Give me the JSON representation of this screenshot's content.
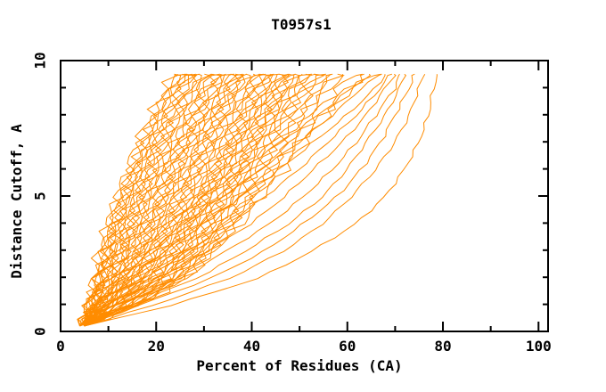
{
  "chart_data": {
    "type": "line",
    "title": "T0957s1",
    "xlabel": "Percent of Residues (CA)",
    "ylabel": "Distance Cutoff, A",
    "xlim": [
      0,
      102
    ],
    "ylim": [
      0,
      10
    ],
    "x_major_ticks": [
      0,
      20,
      40,
      60,
      80,
      100
    ],
    "x_minor_ticks": [
      10,
      30,
      50,
      70,
      90
    ],
    "y_major_ticks": [
      0,
      5,
      10
    ],
    "y_minor_ticks": [
      1,
      2,
      3,
      4,
      6,
      7,
      8,
      9
    ],
    "grid": false,
    "legend_position": "none",
    "line_color": "#ff8c00",
    "axis_color": "#000000",
    "background_color": "#ffffff",
    "cutoffs": [
      0.2,
      1,
      2,
      3,
      4,
      5,
      6,
      7,
      8,
      9,
      9.5
    ],
    "series": [
      {
        "group": "bundle",
        "percents": [
          4,
          6,
          7,
          8,
          10,
          12,
          14,
          16,
          19,
          22,
          24
        ]
      },
      {
        "group": "bundle",
        "percents": [
          5,
          6,
          8,
          9,
          10,
          12,
          15,
          17,
          20,
          23,
          25
        ]
      },
      {
        "group": "bundle",
        "percents": [
          4,
          6,
          8,
          9,
          11,
          13,
          15,
          18,
          20,
          23,
          25
        ]
      },
      {
        "group": "bundle",
        "percents": [
          5,
          7,
          8,
          10,
          11,
          13,
          16,
          18,
          21,
          24,
          26
        ]
      },
      {
        "group": "bundle",
        "percents": [
          4,
          6,
          8,
          10,
          12,
          14,
          16,
          19,
          21,
          24,
          27
        ]
      },
      {
        "group": "bundle",
        "percents": [
          5,
          7,
          9,
          10,
          12,
          14,
          17,
          19,
          22,
          25,
          27
        ]
      },
      {
        "group": "bundle",
        "percents": [
          4,
          6,
          8,
          10,
          12,
          15,
          17,
          20,
          23,
          26,
          28
        ]
      },
      {
        "group": "bundle",
        "percents": [
          5,
          7,
          9,
          11,
          13,
          15,
          18,
          20,
          23,
          26,
          28
        ]
      },
      {
        "group": "bundle",
        "percents": [
          4,
          7,
          9,
          11,
          13,
          16,
          18,
          21,
          24,
          27,
          29
        ]
      },
      {
        "group": "bundle",
        "percents": [
          5,
          7,
          10,
          12,
          14,
          16,
          19,
          22,
          25,
          28,
          30
        ]
      },
      {
        "group": "bundle",
        "percents": [
          4,
          6,
          9,
          12,
          14,
          17,
          19,
          22,
          25,
          28,
          30
        ]
      },
      {
        "group": "bundle",
        "percents": [
          5,
          8,
          10,
          12,
          15,
          17,
          20,
          23,
          26,
          29,
          31
        ]
      },
      {
        "group": "bundle",
        "percents": [
          5,
          7,
          10,
          13,
          15,
          18,
          21,
          24,
          27,
          30,
          32
        ]
      },
      {
        "group": "bundle",
        "percents": [
          4,
          7,
          11,
          13,
          16,
          18,
          21,
          24,
          27,
          30,
          32
        ]
      },
      {
        "group": "bundle",
        "percents": [
          5,
          8,
          11,
          14,
          16,
          19,
          22,
          25,
          28,
          31,
          33
        ]
      },
      {
        "group": "bundle",
        "percents": [
          5,
          8,
          12,
          14,
          17,
          19,
          22,
          26,
          29,
          32,
          34
        ]
      },
      {
        "group": "bundle",
        "percents": [
          4,
          7,
          11,
          14,
          17,
          20,
          23,
          26,
          29,
          32,
          34
        ]
      },
      {
        "group": "bundle",
        "percents": [
          5,
          8,
          12,
          15,
          18,
          21,
          24,
          27,
          30,
          33,
          35
        ]
      },
      {
        "group": "bundle",
        "percents": [
          5,
          9,
          12,
          15,
          18,
          21,
          24,
          27,
          31,
          34,
          36
        ]
      },
      {
        "group": "bundle",
        "percents": [
          5,
          8,
          13,
          16,
          19,
          22,
          25,
          28,
          31,
          34,
          36
        ]
      },
      {
        "group": "bundle",
        "percents": [
          4,
          9,
          13,
          16,
          19,
          22,
          25,
          29,
          32,
          35,
          37
        ]
      },
      {
        "group": "bundle",
        "percents": [
          5,
          9,
          14,
          17,
          20,
          23,
          26,
          29,
          32,
          36,
          38
        ]
      },
      {
        "group": "bundle",
        "percents": [
          5,
          10,
          14,
          17,
          20,
          23,
          27,
          30,
          33,
          36,
          38
        ]
      },
      {
        "group": "bundle",
        "percents": [
          4,
          9,
          14,
          18,
          21,
          24,
          27,
          30,
          34,
          37,
          39
        ]
      },
      {
        "group": "bundle",
        "percents": [
          5,
          10,
          15,
          18,
          21,
          25,
          28,
          31,
          34,
          37,
          40
        ]
      },
      {
        "group": "bundle",
        "percents": [
          5,
          10,
          15,
          19,
          22,
          25,
          28,
          32,
          35,
          38,
          40
        ]
      },
      {
        "group": "bundle",
        "percents": [
          4,
          9,
          15,
          19,
          22,
          26,
          29,
          32,
          36,
          39,
          41
        ]
      },
      {
        "group": "bundle",
        "percents": [
          5,
          10,
          16,
          20,
          23,
          26,
          30,
          33,
          36,
          40,
          42
        ]
      },
      {
        "group": "bundle",
        "percents": [
          5,
          11,
          16,
          20,
          24,
          27,
          30,
          34,
          37,
          40,
          42
        ]
      },
      {
        "group": "bundle",
        "percents": [
          5,
          10,
          16,
          21,
          24,
          28,
          31,
          34,
          38,
          41,
          43
        ]
      },
      {
        "group": "bundle",
        "percents": [
          4,
          11,
          17,
          21,
          25,
          28,
          32,
          35,
          38,
          42,
          44
        ]
      },
      {
        "group": "bundle",
        "percents": [
          5,
          11,
          17,
          22,
          25,
          29,
          32,
          36,
          39,
          42,
          44
        ]
      },
      {
        "group": "bundle",
        "percents": [
          5,
          12,
          18,
          22,
          26,
          29,
          33,
          36,
          40,
          43,
          45
        ]
      },
      {
        "group": "bundle",
        "percents": [
          5,
          11,
          18,
          23,
          26,
          30,
          33,
          37,
          40,
          44,
          46
        ]
      },
      {
        "group": "bundle",
        "percents": [
          4,
          12,
          18,
          23,
          27,
          30,
          34,
          37,
          41,
          44,
          46
        ]
      },
      {
        "group": "bundle",
        "percents": [
          5,
          12,
          19,
          24,
          27,
          31,
          34,
          38,
          41,
          45,
          47
        ]
      },
      {
        "group": "bundle",
        "percents": [
          5,
          13,
          19,
          24,
          28,
          31,
          35,
          38,
          42,
          45,
          48
        ]
      },
      {
        "group": "bundle",
        "percents": [
          5,
          12,
          20,
          25,
          28,
          32,
          35,
          39,
          43,
          46,
          48
        ]
      },
      {
        "group": "bundle",
        "percents": [
          4,
          13,
          20,
          25,
          29,
          32,
          36,
          40,
          43,
          47,
          49
        ]
      },
      {
        "group": "bundle",
        "percents": [
          5,
          13,
          21,
          26,
          29,
          33,
          37,
          40,
          44,
          47,
          50
        ]
      },
      {
        "group": "bundle",
        "percents": [
          5,
          14,
          21,
          26,
          30,
          34,
          37,
          41,
          44,
          48,
          50
        ]
      },
      {
        "group": "bundle",
        "percents": [
          5,
          13,
          21,
          27,
          30,
          34,
          38,
          41,
          45,
          49,
          51
        ]
      },
      {
        "group": "bundle",
        "percents": [
          4,
          14,
          22,
          27,
          31,
          35,
          38,
          42,
          46,
          49,
          52
        ]
      },
      {
        "group": "bundle",
        "percents": [
          5,
          14,
          22,
          28,
          32,
          35,
          39,
          43,
          46,
          50,
          53
        ]
      },
      {
        "group": "bundle",
        "percents": [
          5,
          15,
          23,
          28,
          32,
          36,
          40,
          43,
          47,
          51,
          54
        ]
      },
      {
        "group": "bundle",
        "percents": [
          5,
          14,
          23,
          29,
          33,
          37,
          40,
          44,
          48,
          52,
          55
        ]
      },
      {
        "group": "bundle",
        "percents": [
          4,
          15,
          24,
          29,
          33,
          37,
          41,
          45,
          49,
          53,
          56
        ]
      },
      {
        "group": "bundle",
        "percents": [
          5,
          15,
          24,
          30,
          34,
          38,
          42,
          46,
          50,
          54,
          57
        ]
      },
      {
        "group": "bundle",
        "percents": [
          5,
          16,
          25,
          30,
          35,
          39,
          43,
          47,
          51,
          55,
          58
        ]
      },
      {
        "group": "bundle",
        "percents": [
          5,
          15,
          25,
          31,
          35,
          40,
          44,
          48,
          52,
          56,
          60
        ]
      },
      {
        "group": "bundle",
        "percents": [
          4,
          16,
          26,
          31,
          36,
          40,
          45,
          49,
          53,
          58,
          62
        ]
      },
      {
        "group": "bundle",
        "percents": [
          5,
          16,
          26,
          32,
          37,
          41,
          46,
          50,
          55,
          60,
          64
        ]
      },
      {
        "group": "bundle",
        "percents": [
          5,
          17,
          27,
          32,
          38,
          42,
          47,
          51,
          56,
          61,
          66
        ]
      },
      {
        "group": "top",
        "percents": [
          5,
          8,
          12,
          17,
          23,
          30,
          38,
          46,
          54,
          61,
          65
        ]
      },
      {
        "group": "top",
        "percents": [
          4,
          8,
          13,
          19,
          26,
          34,
          42,
          50,
          57,
          63,
          67
        ]
      },
      {
        "group": "top",
        "percents": [
          5,
          9,
          15,
          22,
          30,
          38,
          46,
          53,
          60,
          66,
          68
        ]
      },
      {
        "group": "top",
        "percents": [
          4,
          10,
          18,
          27,
          35,
          43,
          50,
          56,
          62,
          67,
          69
        ]
      },
      {
        "group": "top",
        "percents": [
          5,
          11,
          21,
          31,
          40,
          47,
          53,
          59,
          64,
          68,
          70
        ]
      },
      {
        "group": "top",
        "percents": [
          5,
          13,
          25,
          35,
          44,
          51,
          57,
          62,
          66,
          70,
          71
        ]
      },
      {
        "group": "top",
        "percents": [
          5,
          15,
          29,
          39,
          48,
          55,
          60,
          64,
          68,
          71,
          72
        ]
      },
      {
        "group": "top",
        "percents": [
          5,
          17,
          32,
          43,
          51,
          58,
          63,
          67,
          70,
          73,
          74
        ]
      },
      {
        "group": "top",
        "percents": [
          5,
          20,
          36,
          47,
          55,
          61,
          66,
          70,
          73,
          75,
          76
        ]
      },
      {
        "group": "top",
        "percents": [
          5,
          24,
          42,
          53,
          62,
          68,
          72,
          75,
          77,
          78,
          79
        ]
      }
    ]
  }
}
